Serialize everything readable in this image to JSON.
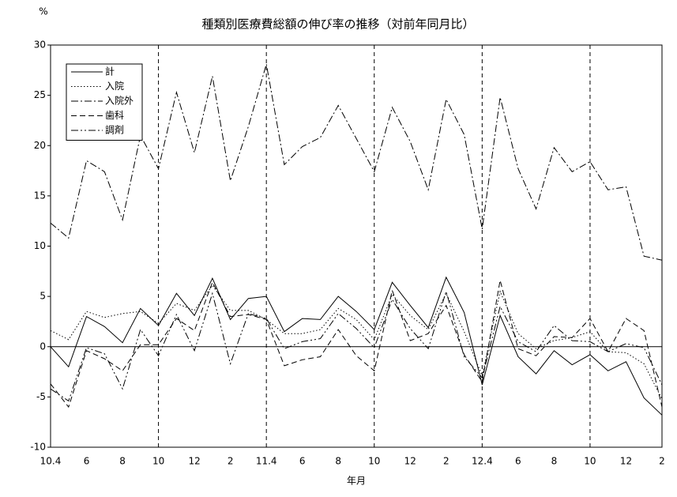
{
  "chart_data": {
    "type": "line",
    "title": "種類別医療費総額の伸び率の推移（対前年同月比）",
    "y_unit": "%",
    "x_label": "年月",
    "categories": [
      "10.4",
      null,
      "6",
      null,
      "8",
      null,
      "10",
      null,
      "12",
      null,
      "2",
      null,
      "11.4",
      null,
      "6",
      null,
      "8",
      null,
      "10",
      null,
      "12",
      null,
      "2",
      null,
      "12.4",
      null,
      "6",
      null,
      "8",
      null,
      "10",
      null,
      "12",
      null,
      "2"
    ],
    "ylim": [
      -10,
      30
    ],
    "yticks": [
      -10,
      -5,
      0,
      5,
      10,
      15,
      20,
      25,
      30
    ],
    "legend": "top-left",
    "series": [
      {
        "name": "計",
        "color": "#000000",
        "style": "solid",
        "values": [
          0,
          -2.0,
          3.0,
          2.0,
          0.4,
          3.8,
          2.1,
          5.3,
          3.1,
          6.8,
          2.7,
          4.8,
          5.0,
          1.5,
          2.8,
          2.7,
          5.0,
          3.5,
          1.7,
          6.4,
          4.1,
          1.9,
          6.9,
          3.4,
          -3.8,
          3.1,
          -1.0,
          -2.7,
          -0.4,
          -1.8,
          -0.8,
          -2.4,
          -1.5,
          -5.1,
          -6.8
        ]
      },
      {
        "name": "入院",
        "color": "#000000",
        "style": "dotted",
        "values": [
          1.6,
          0.7,
          3.5,
          2.9,
          3.3,
          3.5,
          2.3,
          4.3,
          3.6,
          6.1,
          3.6,
          3.6,
          2.7,
          1.3,
          1.3,
          1.7,
          3.8,
          2.7,
          0.7,
          5.2,
          3.1,
          1.7,
          5.3,
          1.5,
          -2.9,
          5.5,
          1.3,
          -0.2,
          0.6,
          0.9,
          1.5,
          -0.5,
          -0.6,
          -1.7,
          -5.2
        ]
      },
      {
        "name": "入院外",
        "color": "#000000",
        "style": "dashdot",
        "values": [
          12.3,
          10.8,
          18.5,
          17.4,
          12.6,
          21.0,
          17.7,
          25.3,
          19.3,
          26.9,
          16.5,
          21.9,
          28.1,
          18.1,
          19.9,
          20.8,
          24.0,
          20.7,
          17.4,
          23.8,
          20.4,
          15.6,
          24.6,
          21.1,
          11.7,
          24.8,
          17.7,
          13.7,
          19.8,
          17.4,
          18.4,
          15.6,
          15.9,
          9.0,
          8.6
        ]
      },
      {
        "name": "歯科",
        "color": "#000000",
        "style": "dashed",
        "values": [
          -3.7,
          -6.0,
          -0.4,
          -1.2,
          -2.4,
          0.2,
          0.2,
          2.8,
          1.6,
          6.4,
          3.0,
          3.2,
          2.7,
          -1.9,
          -1.3,
          -1.0,
          1.7,
          -0.9,
          -2.4,
          5.6,
          0.6,
          1.3,
          4.1,
          -0.8,
          -3.5,
          6.6,
          -0.2,
          -0.9,
          1.0,
          0.9,
          2.8,
          -0.5,
          2.8,
          1.6,
          -6.0
        ]
      },
      {
        "name": "調剤",
        "color": "#000000",
        "style": "dashdotdot",
        "values": [
          -4.2,
          -5.4,
          -0.1,
          -0.7,
          -4.2,
          1.7,
          -0.9,
          3.2,
          -0.4,
          5.3,
          -1.7,
          3.3,
          2.8,
          -0.2,
          0.5,
          0.8,
          3.3,
          1.8,
          -0.1,
          4.7,
          1.8,
          -0.2,
          5.5,
          -1.0,
          -3.1,
          4.0,
          0.5,
          -0.5,
          2.1,
          0.6,
          0.5,
          -0.5,
          0.3,
          -0.1,
          -3.8
        ]
      }
    ]
  }
}
